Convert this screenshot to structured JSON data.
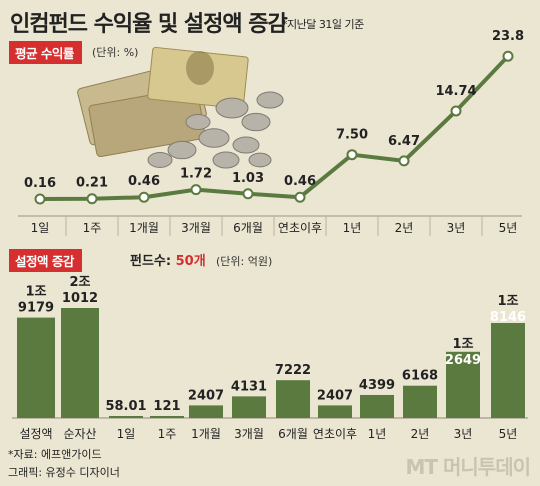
{
  "header": {
    "title": "인컴펀드 수익율 및 설정액 증감",
    "note": "*지난달 31일 기준"
  },
  "returns_section": {
    "tag": "평균 수익률",
    "unit": "(단위: %)"
  },
  "aum_section": {
    "tag": "설정액 증감",
    "fund_count_label": "펀드수:",
    "fund_count_value": "50개",
    "unit": "(단위: 억원)"
  },
  "footer": {
    "source": "*자료: 에프앤가이드",
    "credit": "그래픽: 유정수 디자이너"
  },
  "logo": {
    "text": "MT 머니투데이"
  },
  "colors": {
    "accent": "#d62f2f",
    "series": "#5b7a40",
    "background": "#ebe6d2"
  },
  "chart_data": [
    {
      "type": "line",
      "categories": [
        "1일",
        "1주",
        "1개월",
        "3개월",
        "6개월",
        "연초이후",
        "1년",
        "2년",
        "3년",
        "5년"
      ],
      "values": [
        0.16,
        0.21,
        0.46,
        1.72,
        1.03,
        0.46,
        7.5,
        6.47,
        14.74,
        23.8
      ],
      "data_labels": [
        "0.16",
        "0.21",
        "0.46",
        "1.72",
        "1.03",
        "0.46",
        "7.50",
        "6.47",
        "14.74",
        "23.8"
      ],
      "title": "평균 수익률",
      "ylabel": "%",
      "ylim": [
        0,
        24
      ]
    },
    {
      "type": "bar",
      "categories": [
        "설정액",
        "순자산",
        "1일",
        "1주",
        "1개월",
        "3개월",
        "6개월",
        "연초이후",
        "1년",
        "2년",
        "3년",
        "5년"
      ],
      "values": [
        19179,
        21012,
        58.01,
        121,
        2407,
        4131,
        7222,
        2407,
        4399,
        6168,
        12649,
        18146
      ],
      "data_labels": [
        [
          "1조",
          "9179"
        ],
        [
          "2조",
          "1012"
        ],
        [
          "58.01"
        ],
        [
          "121"
        ],
        [
          "2407"
        ],
        [
          "4131"
        ],
        [
          "7222"
        ],
        [
          "2407"
        ],
        [
          "4399"
        ],
        [
          "6168"
        ],
        [
          "1조",
          "2649"
        ],
        [
          "1조",
          "8146"
        ]
      ],
      "title": "설정액 증감",
      "ylabel": "억원"
    }
  ]
}
